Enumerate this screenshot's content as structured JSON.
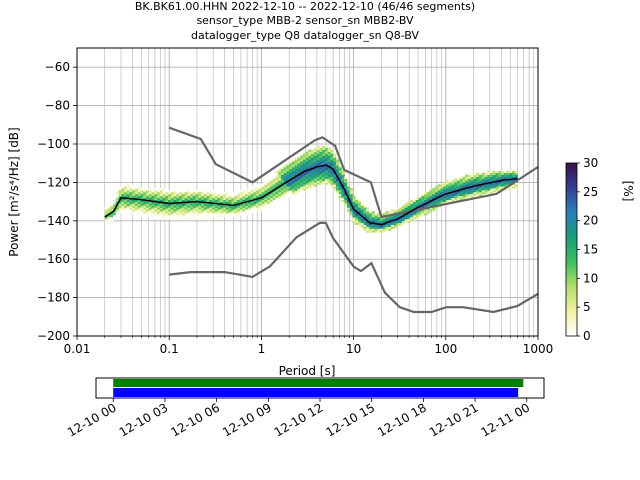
{
  "title_lines": [
    "BK.BK61.00.HHN   2022-12-10 -- 2022-12-10  (46/46 segments)",
    "sensor_type MBB-2 sensor_sn MBB2-BV",
    "datalogger_type Q8 datalogger_sn Q8-BV"
  ],
  "colors": {
    "mean_line": "#000000",
    "noise_model": "#666666",
    "grid": "#b0b0b0",
    "timeline_green": "#008000",
    "timeline_blue": "#0000ff"
  },
  "chart_data": [
    {
      "type": "heatmap",
      "subtype": "probabilistic power spectral density",
      "xlabel": "Period [s]",
      "ylabel": "Power [m²/s⁴/Hz] [dB]",
      "xscale": "log",
      "xlim": [
        0.01,
        1000
      ],
      "ylim": [
        -200,
        -50
      ],
      "grid": true,
      "x_ticks": [
        {
          "value": 0.01,
          "label": "0.01"
        },
        {
          "value": 0.1,
          "label": "0.1"
        },
        {
          "value": 1,
          "label": "1"
        },
        {
          "value": 10,
          "label": "10"
        },
        {
          "value": 100,
          "label": "100"
        },
        {
          "value": 1000,
          "label": "1000"
        }
      ],
      "y_ticks": [
        {
          "value": -60,
          "label": "−60"
        },
        {
          "value": -80,
          "label": "−80"
        },
        {
          "value": -100,
          "label": "−100"
        },
        {
          "value": -120,
          "label": "−120"
        },
        {
          "value": -140,
          "label": "−140"
        },
        {
          "value": -160,
          "label": "−160"
        },
        {
          "value": -180,
          "label": "−180"
        },
        {
          "value": -200,
          "label": "−200"
        }
      ],
      "colorbar": {
        "label": "[%]",
        "range": [
          0,
          30
        ],
        "ticks": [
          {
            "value": 0,
            "label": "0"
          },
          {
            "value": 5,
            "label": "5"
          },
          {
            "value": 10,
            "label": "10"
          },
          {
            "value": 15,
            "label": "15"
          },
          {
            "value": 20,
            "label": "20"
          },
          {
            "value": 25,
            "label": "25"
          },
          {
            "value": 30,
            "label": "30"
          }
        ],
        "stops": [
          "#ffffff",
          "#f2f2a8",
          "#b3de69",
          "#3ebf60",
          "#1b9e77",
          "#2c7fb8",
          "#33408f",
          "#3b0f4f"
        ]
      },
      "mean_curve": {
        "period": [
          0.02,
          0.025,
          0.03,
          0.05,
          0.1,
          0.2,
          0.5,
          1,
          2,
          3,
          4,
          5,
          6,
          8,
          10,
          15,
          20,
          30,
          50,
          100,
          200,
          400,
          600
        ],
        "db": [
          -138,
          -135,
          -128,
          -129,
          -131,
          -130,
          -132,
          -128,
          -119,
          -114,
          -112,
          -111,
          -113,
          -124,
          -134,
          -141,
          -142,
          -139,
          -133,
          -126,
          -122,
          -119,
          -118
        ]
      },
      "density_band": {
        "period": [
          0.02,
          0.025,
          0.03,
          0.05,
          0.1,
          0.2,
          0.5,
          1,
          2,
          3,
          4,
          5,
          6,
          8,
          10,
          15,
          20,
          30,
          50,
          100,
          200,
          400,
          600
        ],
        "high_db": [
          -134,
          -130,
          -121,
          -123,
          -124,
          -124,
          -126,
          -121,
          -110,
          -105,
          -102,
          -101,
          -104,
          -116,
          -127,
          -135,
          -137,
          -134,
          -128,
          -120,
          -116,
          -114,
          -114
        ],
        "low_db": [
          -141,
          -139,
          -135,
          -137,
          -139,
          -138,
          -138,
          -134,
          -127,
          -123,
          -121,
          -120,
          -122,
          -131,
          -140,
          -146,
          -146,
          -143,
          -138,
          -131,
          -127,
          -124,
          -122
        ]
      },
      "noise_model_high": {
        "period": [
          0.1,
          0.22,
          0.32,
          0.8,
          3.8,
          4.6,
          6.3,
          7.9,
          15.4,
          20,
          354.8,
          1000
        ],
        "db": [
          -91.5,
          -97.4,
          -110.5,
          -120,
          -98,
          -96.5,
          -101,
          -113.5,
          -120,
          -138,
          -126,
          -112
        ]
      },
      "noise_model_low": {
        "period": [
          0.1,
          0.17,
          0.4,
          0.8,
          1.24,
          2.4,
          4.3,
          5,
          6,
          10,
          12,
          15.6,
          21.9,
          31.6,
          45,
          70,
          101,
          154,
          328,
          600,
          1000
        ],
        "db": [
          -168,
          -166.7,
          -166.7,
          -169.2,
          -163.7,
          -148.6,
          -141.1,
          -141.1,
          -149,
          -163.8,
          -166.2,
          -162.1,
          -177.5,
          -185,
          -187.5,
          -187.5,
          -185,
          -185,
          -187.5,
          -184.4,
          -178
        ]
      }
    },
    {
      "type": "bar",
      "subtype": "data availability timeline",
      "x_tick_labels": [
        "12-10 00",
        "12-10 03",
        "12-10 06",
        "12-10 09",
        "12-10 12",
        "12-10 15",
        "12-10 18",
        "12-10 21",
        "12-11 00"
      ],
      "x_range_hours": [
        -1,
        25
      ],
      "series": [
        {
          "color": "green",
          "start_hour": 0,
          "end_hour": 23.8
        },
        {
          "color": "blue",
          "start_hour": 0,
          "end_hour": 23.5
        }
      ]
    }
  ]
}
